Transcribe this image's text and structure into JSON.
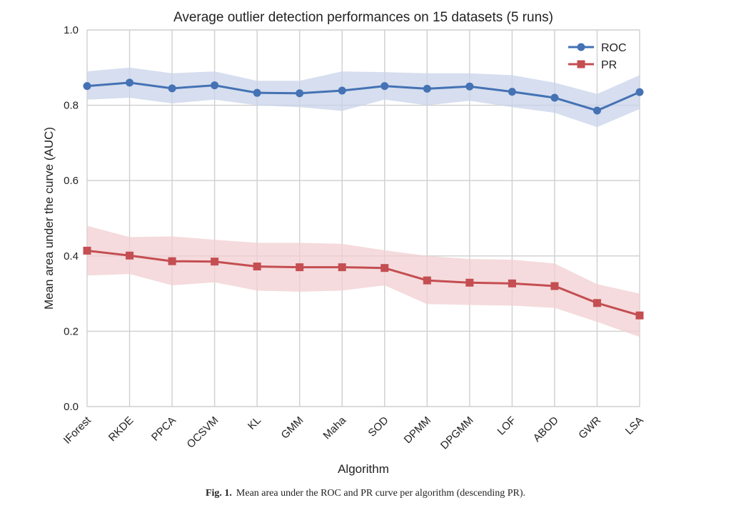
{
  "chart_data": {
    "type": "line",
    "title": "Average outlier detection performances on 15 datasets (5 runs)",
    "xlabel": "Algorithm",
    "ylabel": "Mean area under the curve (AUC)",
    "ylim": [
      0.0,
      1.0
    ],
    "yticks": [
      "0.0",
      "0.2",
      "0.4",
      "0.6",
      "0.8",
      "1.0"
    ],
    "grid": true,
    "legend_position": "top-right",
    "categories": [
      "IForest",
      "RKDE",
      "PPCA",
      "OCSVM",
      "KL",
      "GMM",
      "Maha",
      "SOD",
      "DPMM",
      "DPGMM",
      "LOF",
      "ABOD",
      "GWR",
      "LSA"
    ],
    "series": [
      {
        "name": "ROC",
        "color": "#4472b4",
        "band_color": "#c8d3ea",
        "marker": "circle",
        "values": [
          0.851,
          0.86,
          0.845,
          0.853,
          0.833,
          0.832,
          0.839,
          0.851,
          0.844,
          0.85,
          0.836,
          0.82,
          0.786,
          0.835
        ],
        "lower": [
          0.815,
          0.82,
          0.805,
          0.815,
          0.8,
          0.795,
          0.785,
          0.815,
          0.8,
          0.812,
          0.795,
          0.78,
          0.742,
          0.79
        ],
        "upper": [
          0.89,
          0.9,
          0.885,
          0.89,
          0.865,
          0.865,
          0.89,
          0.888,
          0.885,
          0.885,
          0.88,
          0.86,
          0.83,
          0.88
        ]
      },
      {
        "name": "PR",
        "color": "#c44e52",
        "band_color": "#f2cfd1",
        "marker": "square",
        "values": [
          0.414,
          0.401,
          0.386,
          0.385,
          0.372,
          0.37,
          0.37,
          0.368,
          0.335,
          0.329,
          0.327,
          0.32,
          0.275,
          0.242
        ],
        "lower": [
          0.348,
          0.352,
          0.322,
          0.33,
          0.308,
          0.305,
          0.308,
          0.322,
          0.272,
          0.27,
          0.268,
          0.262,
          0.225,
          0.185
        ],
        "upper": [
          0.48,
          0.45,
          0.452,
          0.443,
          0.435,
          0.435,
          0.432,
          0.415,
          0.4,
          0.392,
          0.39,
          0.38,
          0.325,
          0.3
        ]
      }
    ]
  },
  "caption": {
    "label": "Fig. 1.",
    "text": "Mean area under the ROC and PR curve per algorithm (descending PR)."
  }
}
